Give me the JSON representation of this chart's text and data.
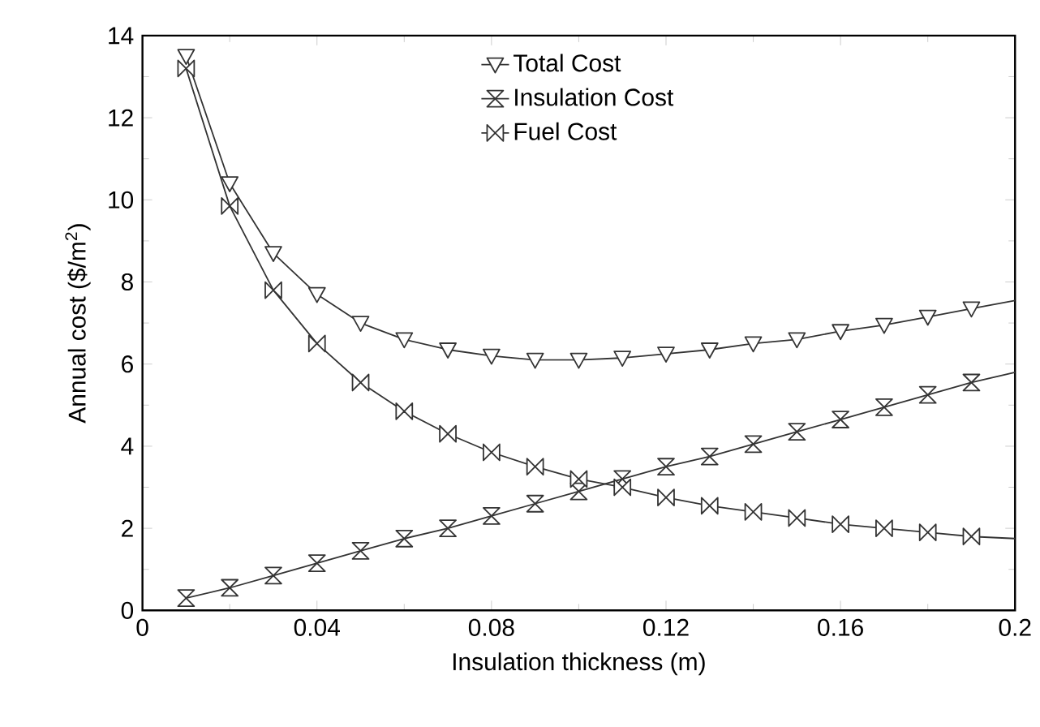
{
  "chart_data": {
    "type": "line",
    "xlabel": "Insulation thickness (m)",
    "ylabel": "Annual cost ($/m$^{2}$)",
    "x": [
      0.01,
      0.02,
      0.03,
      0.04,
      0.05,
      0.06,
      0.07,
      0.08,
      0.09,
      0.1,
      0.11,
      0.12,
      0.13,
      0.14,
      0.15,
      0.16,
      0.17,
      0.18,
      0.19,
      0.2
    ],
    "series": [
      {
        "name": "Total Cost",
        "color": "#333333",
        "marker": "triangle",
        "values": [
          13.5,
          10.4,
          8.7,
          7.7,
          7.0,
          6.6,
          6.35,
          6.2,
          6.1,
          6.1,
          6.15,
          6.25,
          6.35,
          6.5,
          6.6,
          6.8,
          6.95,
          7.15,
          7.35,
          7.55
        ]
      },
      {
        "name": "Insulation Cost",
        "color": "#333333",
        "marker": "diamond",
        "values": [
          0.3,
          0.55,
          0.85,
          1.15,
          1.45,
          1.75,
          2.0,
          2.3,
          2.6,
          2.9,
          3.2,
          3.5,
          3.75,
          4.05,
          4.35,
          4.65,
          4.95,
          5.25,
          5.55,
          5.8
        ]
      },
      {
        "name": "Fuel Cost",
        "color": "#333333",
        "marker": "diamond",
        "values": [
          13.2,
          9.85,
          7.8,
          6.5,
          5.55,
          4.85,
          4.3,
          3.85,
          3.5,
          3.2,
          3.0,
          2.75,
          2.55,
          2.4,
          2.25,
          2.1,
          2.0,
          1.9,
          1.8,
          1.75
        ]
      }
    ],
    "xlim": [
      0,
      0.2
    ],
    "xticks": [
      0,
      0.04,
      0.08,
      0.12,
      0.16,
      0.2
    ],
    "ylim": [
      0,
      14
    ],
    "yticks": [
      0,
      2,
      4,
      6,
      8,
      10,
      12,
      14
    ],
    "grid": false,
    "legend": "top",
    "line_style": "solid"
  }
}
